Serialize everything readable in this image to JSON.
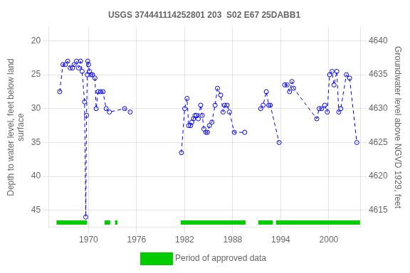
{
  "chart_data": {
    "type": "line",
    "title": "USGS 374441114252801 203  S02 E67 25DABB1",
    "y_label": "Depth to water level, feet below land\nsurface",
    "y2_label": "Groundwater level above NGVD 1929, feet",
    "xlim": [
      1965.0,
      2004.0
    ],
    "xticks": [
      1970,
      1976,
      1982,
      1988,
      1994,
      2000
    ],
    "ylim": [
      47.5,
      18.0
    ],
    "yticks": [
      20,
      25,
      30,
      35,
      40,
      45
    ],
    "y2lim": [
      4612.5,
      4642.0
    ],
    "y2ticks": [
      4615,
      4620,
      4625,
      4630,
      4635,
      4640
    ],
    "grid": true,
    "legend": "bottom",
    "series": [
      {
        "color": "#0000FF",
        "line_style": "dashed",
        "marker": "open_circle",
        "x": [
          1966.4,
          1966.8,
          1967.1,
          1967.4,
          1967.7,
          1968.0,
          1968.2,
          1968.5,
          1968.75,
          1969.0,
          1969.2,
          1969.5,
          1969.65,
          1969.75,
          1969.85,
          1969.9,
          1970.0,
          1970.1,
          1970.3,
          1970.5,
          1970.8,
          1970.95,
          1971.2,
          1971.5,
          1971.8,
          1972.2,
          1972.6,
          1974.5,
          1975.2
        ],
        "values": [
          27.5,
          23.5,
          23.5,
          23.0,
          24.0,
          24.0,
          23.5,
          23.0,
          24.0,
          23.0,
          24.5,
          29.0,
          46.0,
          31.0,
          25.0,
          23.0,
          23.5,
          24.5,
          25.0,
          25.0,
          25.5,
          30.0,
          27.5,
          27.5,
          27.5,
          30.0,
          30.5,
          30.0,
          30.5
        ]
      },
      {
        "color": "#0000FF",
        "line_style": "dashed",
        "marker": "open_circle",
        "x": [
          1981.6,
          1982.0,
          1982.3,
          1982.5,
          1982.75,
          1982.9,
          1983.1,
          1983.3,
          1983.5,
          1983.7,
          1984.0,
          1984.2,
          1984.4,
          1984.65,
          1984.85,
          1985.1,
          1985.4,
          1985.8,
          1986.1,
          1986.5,
          1986.8,
          1987.0,
          1987.3,
          1987.6,
          1988.2,
          1989.5
        ],
        "values": [
          36.5,
          30.0,
          28.5,
          32.5,
          32.5,
          32.0,
          31.5,
          31.0,
          31.0,
          31.5,
          29.5,
          31.0,
          33.0,
          33.5,
          33.5,
          32.5,
          32.0,
          29.5,
          27.0,
          28.0,
          30.5,
          29.5,
          29.5,
          30.5,
          33.5,
          33.5
        ]
      },
      {
        "color": "#0000FF",
        "line_style": "dashed",
        "marker": "open_circle",
        "x": [
          1991.5,
          1991.8,
          1992.2,
          1992.5,
          1992.7,
          1993.8
        ],
        "values": [
          30.0,
          29.5,
          27.5,
          29.5,
          29.5,
          35.0
        ]
      },
      {
        "color": "#0000FF",
        "line_style": "dashed",
        "marker": "open_circle",
        "x": [
          1994.5,
          1994.8,
          1995.1,
          1995.4,
          1995.6,
          1998.5,
          1998.8,
          1999.1,
          1999.5,
          1999.8,
          2000.1,
          2000.4,
          2000.65,
          2001.0,
          2001.25,
          2001.5,
          2002.2,
          2002.6,
          2003.5
        ],
        "values": [
          26.5,
          26.5,
          27.5,
          26.0,
          27.0,
          31.5,
          30.0,
          30.0,
          29.5,
          30.5,
          25.0,
          24.5,
          26.5,
          24.5,
          30.5,
          30.0,
          25.0,
          25.5,
          35.0
        ]
      },
      {
        "name": "Period of approved data",
        "type": "bar",
        "color": "#00CC00",
        "y": 46.8,
        "periods": [
          [
            1966.0,
            1969.8
          ],
          [
            1972.0,
            1972.7
          ],
          [
            1973.3,
            1973.6
          ],
          [
            1981.5,
            1989.6
          ],
          [
            1991.2,
            1993.0
          ],
          [
            1993.4,
            2003.9
          ]
        ]
      }
    ]
  }
}
